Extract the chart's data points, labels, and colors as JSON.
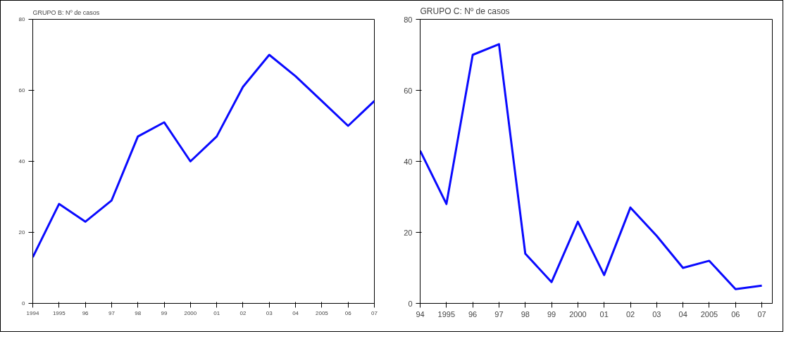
{
  "chart_data": [
    {
      "type": "line",
      "title": "GRUPO B: Nº de casos",
      "categories": [
        "1994",
        "1995",
        "96",
        "97",
        "98",
        "99",
        "2000",
        "01",
        "02",
        "03",
        "04",
        "2005",
        "06",
        "07"
      ],
      "series": [
        {
          "color": "#0a0aff",
          "values": [
            13,
            28,
            23,
            29,
            47,
            51,
            40,
            47,
            61,
            70,
            64,
            57,
            50,
            57
          ]
        }
      ],
      "ylim": [
        0,
        80
      ],
      "yticks": [
        0,
        20,
        40,
        60,
        80
      ],
      "line_style": "solid"
    },
    {
      "type": "line",
      "title": "GRUPO C: Nº de casos",
      "categories": [
        "94",
        "1995",
        "96",
        "97",
        "98",
        "99",
        "2000",
        "01",
        "02",
        "03",
        "04",
        "2005",
        "06",
        "07"
      ],
      "series": [
        {
          "color": "#0a0aff",
          "values": [
            43,
            28,
            70,
            73,
            14,
            6,
            23,
            8,
            27,
            19,
            10,
            12,
            4,
            5
          ]
        }
      ],
      "ylim": [
        0,
        80
      ],
      "yticks": [
        0,
        20,
        40,
        60,
        80
      ],
      "line_style": "solid"
    }
  ]
}
